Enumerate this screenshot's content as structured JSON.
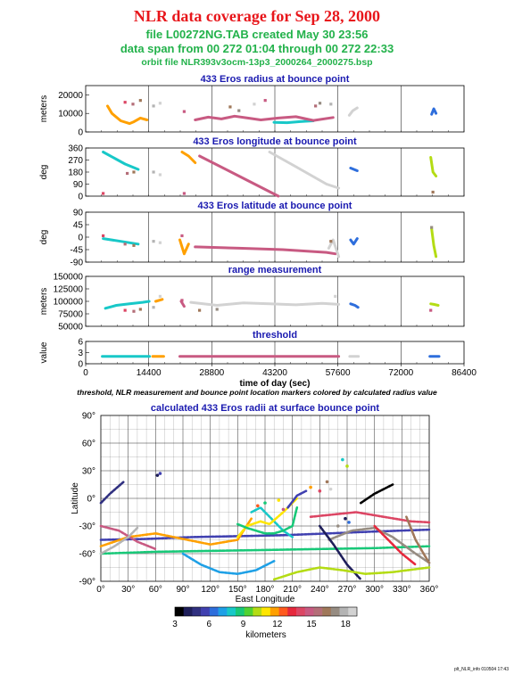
{
  "header": {
    "title": "NLR data coverage for Sep 28, 2000",
    "file_line": "file L00272NG.TAB created May 30 23:56",
    "span_line": "data span from 00 272 01:04 through 00 272 22:33",
    "orbit_line": "orbit file NLR393v3ocm-13p3_2000264_2000275.bsp"
  },
  "chart_data": [
    {
      "type": "scatter",
      "title": "433 Eros radius at bounce point",
      "ylabel": "meters",
      "xlim": [
        0,
        86400
      ],
      "ylim": [
        0,
        25000
      ],
      "yticks": [
        0,
        10000,
        20000
      ],
      "segments": [
        {
          "x": [
            43000,
            46000,
            49000,
            52000
          ],
          "y": [
            5200,
            5000,
            5600,
            6000
          ]
        },
        {
          "x": [
            5000,
            6000,
            8000,
            10000,
            11000,
            12500,
            14000
          ],
          "y": [
            14000,
            10000,
            6000,
            4500,
            5500,
            7500,
            6500
          ]
        },
        {
          "x": [
            25000,
            28000,
            31000,
            34000,
            37000,
            40000,
            44000,
            48000,
            52000,
            56500
          ],
          "y": [
            6500,
            8000,
            7000,
            8500,
            7500,
            6500,
            7500,
            8200,
            6200,
            7800
          ]
        },
        {
          "x": [
            60200,
            61000,
            62000
          ],
          "y": [
            9000,
            11500,
            13000
          ]
        },
        {
          "x": [
            79000,
            79500,
            80000
          ],
          "y": [
            9500,
            12500,
            10000
          ]
        }
      ],
      "points": [
        {
          "x": 9000,
          "y": 16000
        },
        {
          "x": 10800,
          "y": 15000
        },
        {
          "x": 12500,
          "y": 17000
        },
        {
          "x": 15500,
          "y": 14000
        },
        {
          "x": 17000,
          "y": 15500
        },
        {
          "x": 22500,
          "y": 11000
        },
        {
          "x": 33000,
          "y": 13500
        },
        {
          "x": 35000,
          "y": 11500
        },
        {
          "x": 38500,
          "y": 15000
        },
        {
          "x": 41000,
          "y": 17000
        },
        {
          "x": 52500,
          "y": 14000
        },
        {
          "x": 53500,
          "y": 15500
        },
        {
          "x": 56000,
          "y": 15000
        }
      ]
    },
    {
      "type": "scatter",
      "title": "433 Eros longitude at bounce point",
      "ylabel": "deg",
      "xlim": [
        0,
        86400
      ],
      "ylim": [
        0,
        360
      ],
      "yticks": [
        0,
        90,
        180,
        270,
        360
      ],
      "segments": [
        {
          "x": [
            4000,
            9000,
            12000
          ],
          "y": [
            330,
            240,
            200
          ]
        },
        {
          "x": [
            22000,
            23500,
            25000
          ],
          "y": [
            330,
            300,
            250
          ]
        },
        {
          "x": [
            26000,
            35000,
            44000
          ],
          "y": [
            300,
            150,
            0
          ]
        },
        {
          "x": [
            42000,
            48000,
            55000,
            57800
          ],
          "y": [
            330,
            220,
            90,
            60
          ]
        },
        {
          "x": [
            60500,
            62000
          ],
          "y": [
            210,
            190
          ]
        },
        {
          "x": [
            78800,
            79300,
            80000
          ],
          "y": [
            290,
            180,
            150
          ]
        }
      ],
      "points": [
        {
          "x": 4000,
          "y": 20
        },
        {
          "x": 9500,
          "y": 170
        },
        {
          "x": 11000,
          "y": 180
        },
        {
          "x": 15500,
          "y": 180
        },
        {
          "x": 17000,
          "y": 160
        },
        {
          "x": 22500,
          "y": 20
        },
        {
          "x": 79300,
          "y": 30
        }
      ]
    },
    {
      "type": "scatter",
      "title": "433 Eros latitude at bounce point",
      "ylabel": "deg",
      "xlim": [
        0,
        86400
      ],
      "ylim": [
        -90,
        90
      ],
      "yticks": [
        -90,
        -45,
        0,
        45,
        90
      ],
      "segments": [
        {
          "x": [
            4000,
            8000,
            12000
          ],
          "y": [
            -5,
            -15,
            -25
          ]
        },
        {
          "x": [
            21500,
            22500,
            23500
          ],
          "y": [
            -10,
            -60,
            -25
          ]
        },
        {
          "x": [
            25000,
            35000,
            45000,
            55000,
            57000
          ],
          "y": [
            -35,
            -40,
            -45,
            -55,
            -60
          ]
        },
        {
          "x": [
            55500,
            56500,
            57800
          ],
          "y": [
            -40,
            -10,
            -70
          ]
        },
        {
          "x": [
            60500,
            61200,
            62000
          ],
          "y": [
            -10,
            -25,
            -5
          ]
        },
        {
          "x": [
            79000,
            79500,
            80000
          ],
          "y": [
            30,
            -30,
            -70
          ]
        }
      ],
      "points": [
        {
          "x": 4000,
          "y": 5
        },
        {
          "x": 9000,
          "y": -25
        },
        {
          "x": 11000,
          "y": -30
        },
        {
          "x": 15500,
          "y": -15
        },
        {
          "x": 17000,
          "y": -20
        },
        {
          "x": 22000,
          "y": 5
        },
        {
          "x": 56000,
          "y": -15
        },
        {
          "x": 79000,
          "y": 35
        }
      ]
    },
    {
      "type": "scatter",
      "title": "range measurement",
      "ylabel": "meters",
      "xlim": [
        0,
        86400
      ],
      "ylim": [
        50000,
        150000
      ],
      "yticks": [
        50000,
        75000,
        100000,
        125000,
        150000
      ],
      "segments": [
        {
          "x": [
            4500,
            7000,
            10000,
            13000,
            14500
          ],
          "y": [
            86000,
            92000,
            95000,
            98000,
            100000
          ]
        },
        {
          "x": [
            16000,
            17500
          ],
          "y": [
            100000,
            104000
          ]
        },
        {
          "x": [
            21800,
            22500
          ],
          "y": [
            100000,
            90000
          ]
        },
        {
          "x": [
            24000,
            30000,
            36000,
            42000,
            48000,
            54000,
            57800
          ],
          "y": [
            98000,
            92000,
            97000,
            95000,
            93000,
            96000,
            94000
          ]
        },
        {
          "x": [
            60500,
            61500,
            62200
          ],
          "y": [
            95000,
            92000,
            88000
          ]
        },
        {
          "x": [
            78800,
            79500,
            80500
          ],
          "y": [
            95000,
            94000,
            92000
          ]
        }
      ],
      "points": [
        {
          "x": 9000,
          "y": 82000
        },
        {
          "x": 11000,
          "y": 80000
        },
        {
          "x": 12500,
          "y": 84000
        },
        {
          "x": 15500,
          "y": 88000
        },
        {
          "x": 17000,
          "y": 110000
        },
        {
          "x": 22000,
          "y": 102000
        },
        {
          "x": 26000,
          "y": 82000
        },
        {
          "x": 30000,
          "y": 84000
        },
        {
          "x": 57000,
          "y": 110000
        },
        {
          "x": 78800,
          "y": 82000
        }
      ]
    },
    {
      "type": "scatter",
      "title": "threshold",
      "ylabel": "value",
      "xlabel": "time of day (sec)",
      "xlim": [
        0,
        86400
      ],
      "ylim": [
        0,
        6
      ],
      "yticks": [
        0,
        3,
        6
      ],
      "xticks": [
        0,
        14400,
        28800,
        43200,
        57600,
        72000,
        86400
      ],
      "segments": [
        {
          "x": [
            3800,
            14600
          ],
          "y": [
            2,
            2
          ]
        },
        {
          "x": [
            15300,
            17800
          ],
          "y": [
            2,
            2
          ]
        },
        {
          "x": [
            21500,
            57800
          ],
          "y": [
            2,
            2
          ]
        },
        {
          "x": [
            60300,
            62300
          ],
          "y": [
            2,
            2
          ]
        },
        {
          "x": [
            78600,
            80700
          ],
          "y": [
            2,
            2
          ]
        }
      ],
      "points": []
    },
    {
      "type": "scatter",
      "title": "calculated 433 Eros radii at surface bounce point",
      "xlabel": "East Longitude",
      "ylabel": "Latitude",
      "xlim": [
        0,
        360
      ],
      "ylim": [
        -90,
        90
      ],
      "xticks": [
        0,
        30,
        60,
        90,
        120,
        150,
        180,
        210,
        240,
        270,
        300,
        330,
        360
      ],
      "yticks": [
        -90,
        -60,
        -30,
        0,
        30,
        60,
        90
      ],
      "segments": [
        {
          "x": [
            0,
            50,
            100,
            150,
            200,
            250,
            300,
            360
          ],
          "y": [
            -45,
            -44,
            -42,
            -41,
            -40,
            -38,
            -36,
            -34
          ]
        },
        {
          "x": [
            0,
            60,
            120,
            180,
            240,
            300,
            360
          ],
          "y": [
            -60,
            -58,
            -57,
            -56,
            -55,
            -54,
            -52
          ]
        },
        {
          "x": [
            0,
            30,
            60,
            90,
            120,
            150,
            165
          ],
          "y": [
            -52,
            -42,
            -38,
            -44,
            -50,
            -45,
            -22
          ]
        },
        {
          "x": [
            0,
            20,
            40,
            60
          ],
          "y": [
            -30,
            -35,
            -47,
            -55
          ]
        },
        {
          "x": [
            0,
            15,
            30,
            40
          ],
          "y": [
            -60,
            -52,
            -42,
            -32
          ]
        },
        {
          "x": [
            0,
            10,
            25
          ],
          "y": [
            -5,
            5,
            18
          ]
        },
        {
          "x": [
            165,
            175,
            190,
            200,
            210
          ],
          "y": [
            -15,
            -10,
            -25,
            -35,
            -42
          ]
        },
        {
          "x": [
            150,
            160,
            175,
            185,
            200,
            215
          ],
          "y": [
            -42,
            -30,
            -25,
            -28,
            -15,
            0
          ]
        },
        {
          "x": [
            230,
            250,
            280,
            310,
            340,
            360
          ],
          "y": [
            -20,
            -18,
            -15,
            -20,
            -25,
            -26
          ]
        },
        {
          "x": [
            250,
            275,
            300,
            320,
            345,
            360
          ],
          "y": [
            -45,
            -35,
            -32,
            -42,
            -60,
            -70
          ]
        },
        {
          "x": [
            240,
            255,
            270,
            285
          ],
          "y": [
            -30,
            -50,
            -72,
            -88
          ]
        },
        {
          "x": [
            90,
            110,
            130,
            150,
            170,
            190
          ],
          "y": [
            -60,
            -72,
            -80,
            -82,
            -78,
            -68
          ]
        },
        {
          "x": [
            190,
            215,
            240,
            265,
            290,
            320,
            360
          ],
          "y": [
            -88,
            -80,
            -75,
            -78,
            -82,
            -80,
            -75
          ]
        },
        {
          "x": [
            300,
            315,
            330,
            345
          ],
          "y": [
            -30,
            -45,
            -60,
            -72
          ]
        },
        {
          "x": [
            335,
            345,
            355,
            360
          ],
          "y": [
            -20,
            -45,
            -62,
            -70
          ]
        },
        {
          "x": [
            285,
            300,
            320
          ],
          "y": [
            -5,
            5,
            15
          ]
        },
        {
          "x": [
            205,
            215,
            225
          ],
          "y": [
            -10,
            3,
            8
          ]
        },
        {
          "x": [
            150,
            160,
            170,
            180,
            190,
            200,
            210,
            215
          ],
          "y": [
            -28,
            -32,
            -35,
            -38,
            -38,
            -35,
            -30,
            -10
          ]
        }
      ],
      "points": [
        {
          "x": 62,
          "y": 25
        },
        {
          "x": 65,
          "y": 27
        },
        {
          "x": 265,
          "y": 42
        },
        {
          "x": 270,
          "y": 35
        },
        {
          "x": 230,
          "y": 12
        },
        {
          "x": 240,
          "y": 8
        },
        {
          "x": 248,
          "y": 18
        },
        {
          "x": 252,
          "y": 10
        },
        {
          "x": 268,
          "y": -22
        },
        {
          "x": 272,
          "y": -26
        },
        {
          "x": 180,
          "y": -5
        },
        {
          "x": 195,
          "y": -2
        },
        {
          "x": 172,
          "y": -8
        },
        {
          "x": 200,
          "y": -12
        },
        {
          "x": 260,
          "y": -30
        }
      ]
    }
  ],
  "caption": "threshold, NLR measurement and bounce point location markers colored by calculated radius value",
  "colorbar": {
    "label": "kilometers",
    "min": 3,
    "max": 19,
    "ticks": [
      3,
      6,
      9,
      12,
      15,
      18
    ],
    "colors": [
      "#000000",
      "#1e1e5a",
      "#303080",
      "#4040b0",
      "#2e6edc",
      "#1ea0e6",
      "#18c8c8",
      "#18c878",
      "#50d232",
      "#b4dc14",
      "#ffe600",
      "#ffa000",
      "#ff5a1e",
      "#e6283c",
      "#dc4664",
      "#c85a82",
      "#b46e78",
      "#a0785a",
      "#968c82",
      "#b4b4b4",
      "#d2d2d2"
    ]
  },
  "stamp": "plt_NLR_info 010504 17:43"
}
